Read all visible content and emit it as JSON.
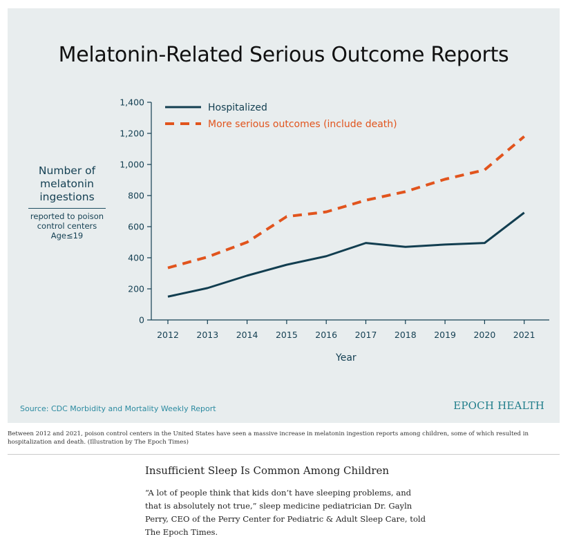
{
  "figure": {
    "source": "Source: CDC Morbidity and Mortality Weekly Report",
    "brand": "EPOCH HEALTH"
  },
  "caption": "Between 2012 and 2021, poison control centers in the United States have seen a massive increase in melatonin ingestion reports among children, some of which resulted in hospitalization and death. (Illustration by The Epoch Times)",
  "article": {
    "heading": "Insufficient Sleep Is Common Among Children",
    "paragraph": "“A lot of people think that kids don’t have sleeping problems, and that is absolutely not true,” sleep medicine pediatrician Dr. Gayln Perry, CEO of the Perry Center for Pediatric & Adult Sleep Care, told The Epoch Times."
  },
  "chart_data": {
    "type": "line",
    "title": "Melatonin-Related Serious Outcome Reports",
    "xlabel": "Year",
    "ylabel": {
      "main": "Number of melatonin ingestions",
      "sub": "reported to poison control centers Age≤19"
    },
    "x": [
      2012,
      2013,
      2014,
      2015,
      2016,
      2017,
      2018,
      2019,
      2020,
      2021
    ],
    "ylim": [
      0,
      1400
    ],
    "yticks": [
      0,
      200,
      400,
      600,
      800,
      1000,
      1200,
      1400
    ],
    "ytick_labels": [
      "0",
      "200",
      "400",
      "600",
      "800",
      "1,000",
      "1,200",
      "1,400"
    ],
    "grid": false,
    "legend_position": "top-left",
    "series": [
      {
        "name": "Hospitalized",
        "style": "solid",
        "color": "#123e50",
        "values": [
          150,
          205,
          285,
          355,
          410,
          495,
          470,
          485,
          495,
          690
        ]
      },
      {
        "name": "More serious outcomes (include death)",
        "style": "dashed",
        "color": "#e1541d",
        "values": [
          335,
          405,
          500,
          665,
          695,
          770,
          825,
          905,
          965,
          1180
        ]
      }
    ]
  }
}
